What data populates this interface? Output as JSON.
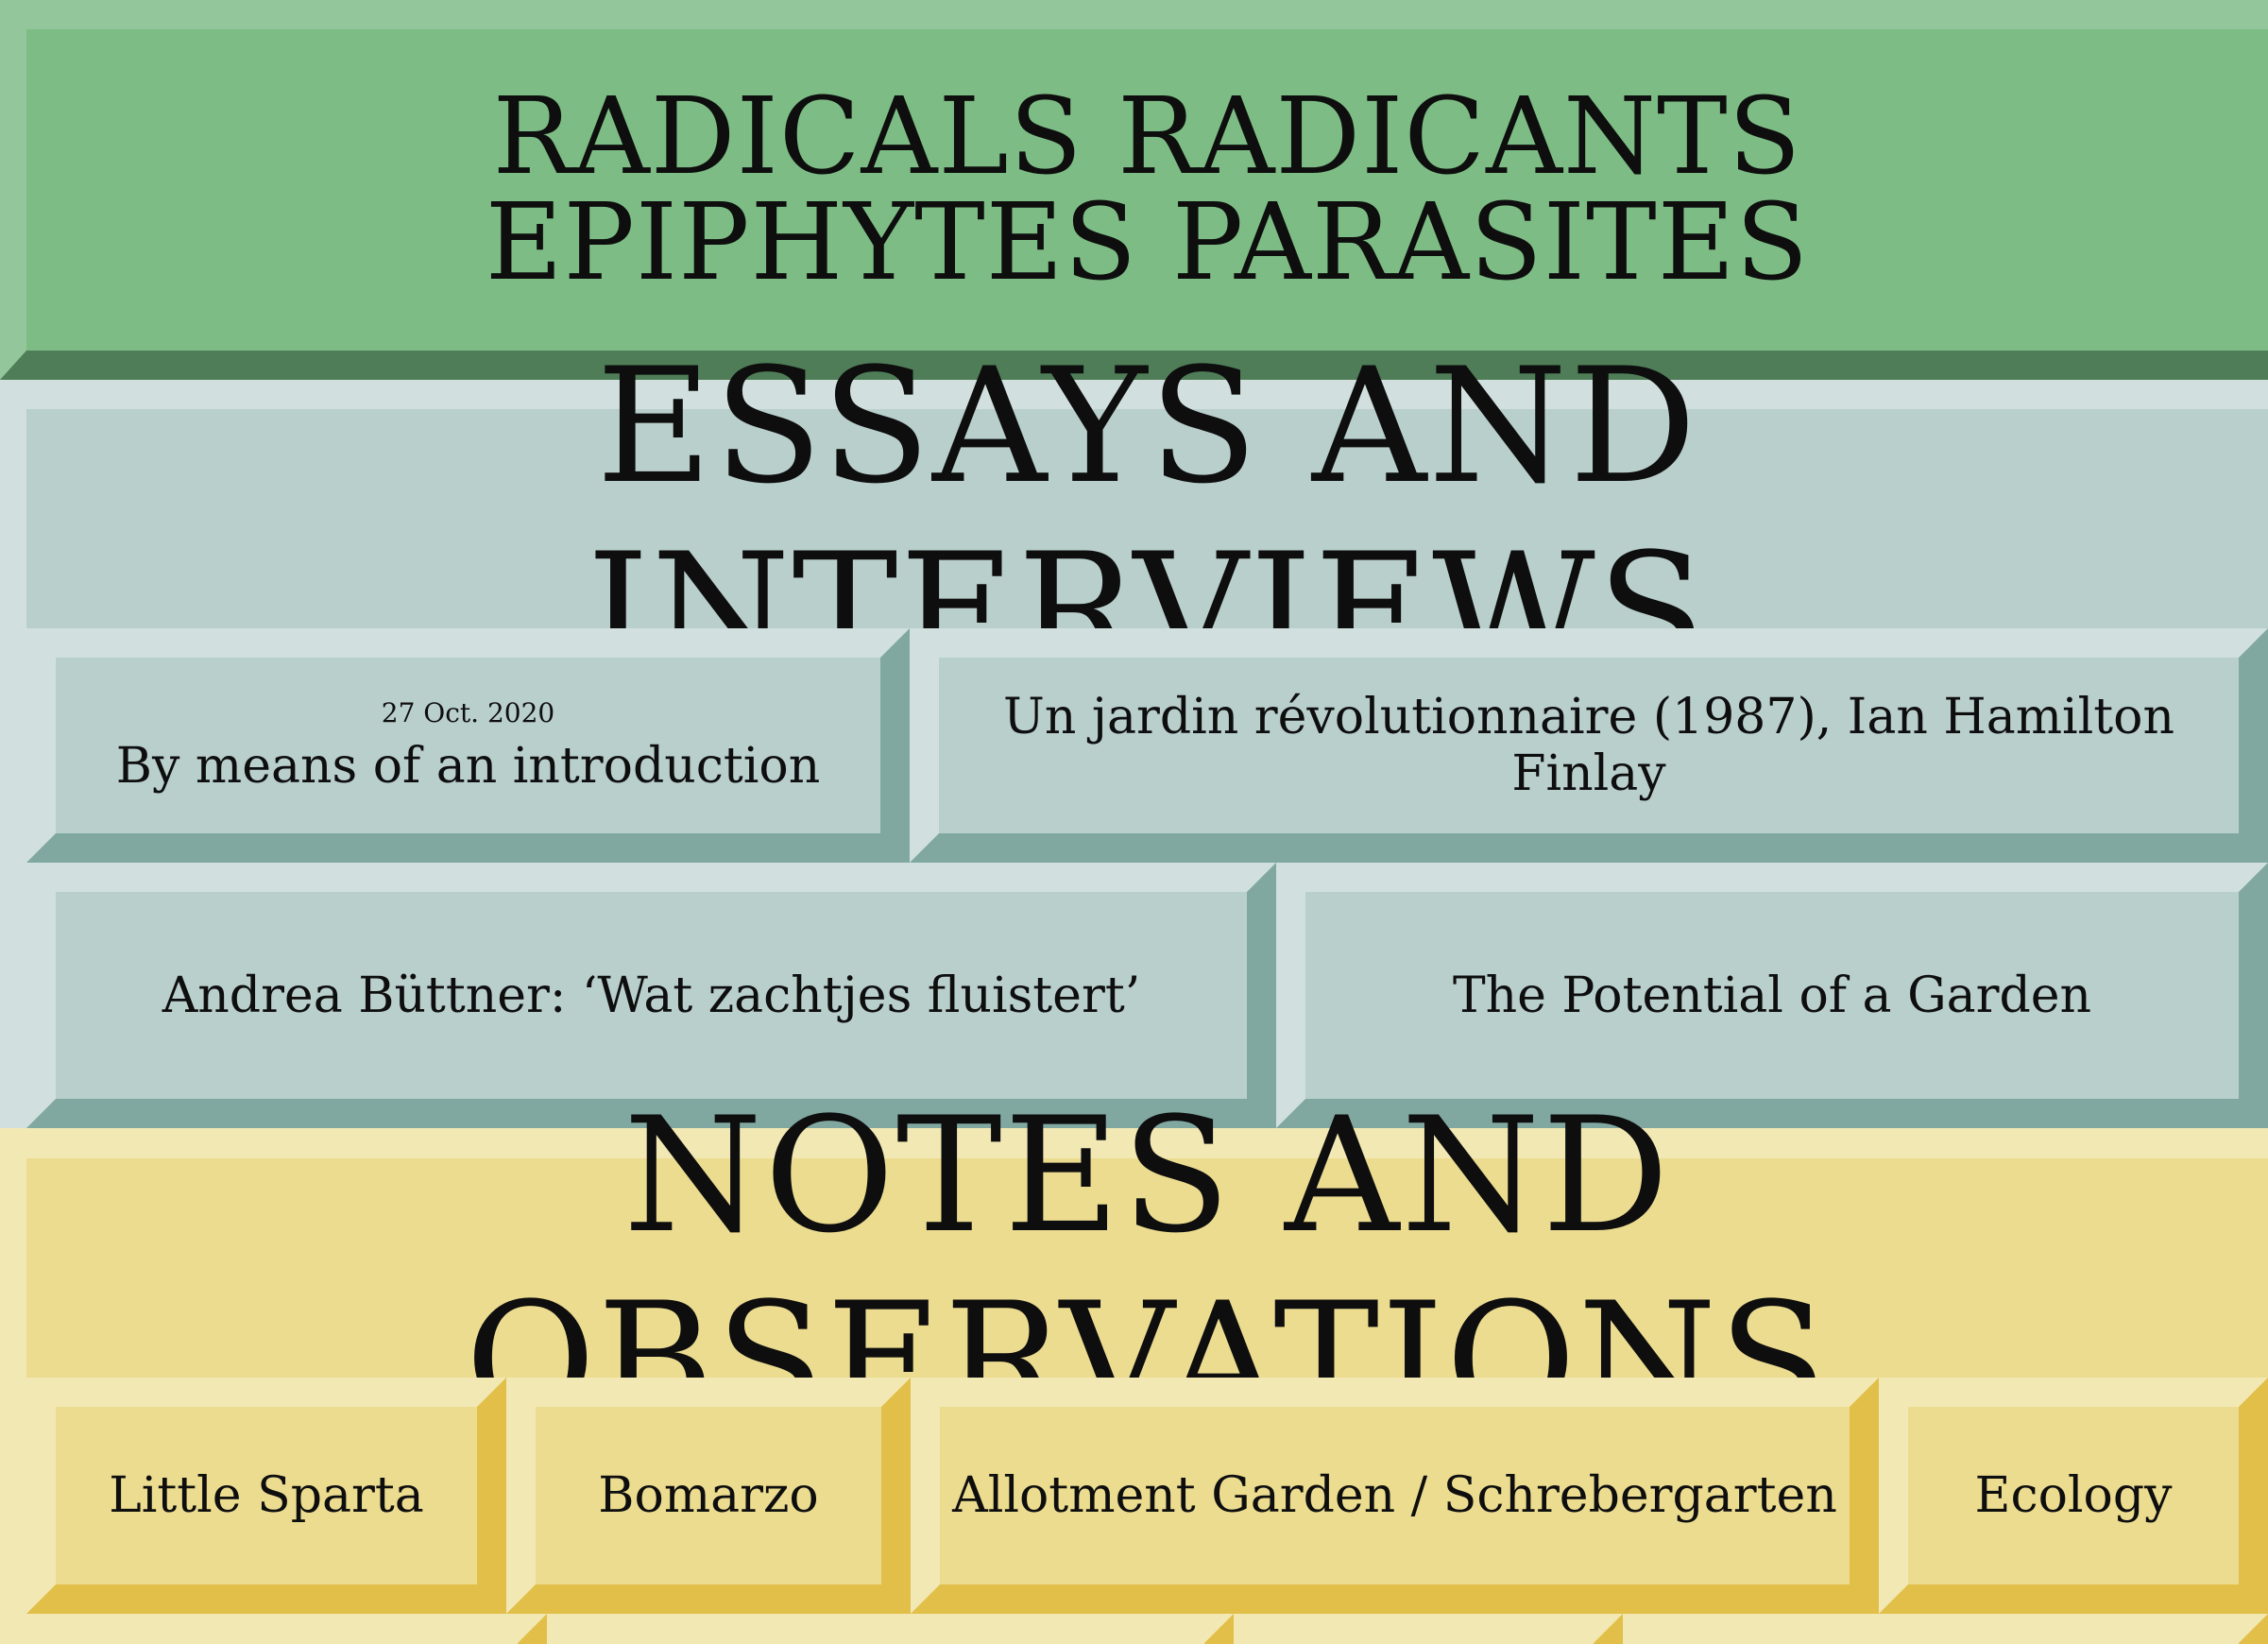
{
  "site": {
    "title": "RADICALS RADICANTS EPIPHYTES PARASITES"
  },
  "essays": {
    "heading": "ESSAYS AND INTERVIEWS",
    "items": [
      {
        "date": "27 Oct. 2020",
        "title": "By means of an introduction"
      },
      {
        "date": "",
        "title": "Un jardin révolutionnaire (1987), Ian Hamilton Finlay"
      },
      {
        "date": "",
        "title": "Andrea Büttner: ‘Wat zachtjes fluistert’"
      },
      {
        "date": "",
        "title": "The Potential of a Garden"
      }
    ]
  },
  "notes": {
    "heading": "NOTES AND OBSERVATIONS",
    "items": [
      {
        "title": "Little Sparta"
      },
      {
        "title": "Bomarzo"
      },
      {
        "title": "Allotment Garden / Schrebergarten"
      },
      {
        "title": "Ecology"
      }
    ]
  },
  "colors": {
    "green": "#7dbd85",
    "teal": "#b9cfcc",
    "yellow": "#ecdc90"
  }
}
